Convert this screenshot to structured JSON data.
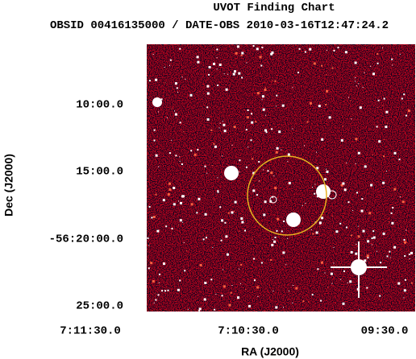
{
  "title": "UVOT Finding Chart",
  "subtitle": "OBSID 00416135000 / DATE-OBS 2010-03-16T12:47:24.2",
  "axes": {
    "x_label": "RA (J2000)",
    "y_label": "Dec (J2000)",
    "x_ticks": [
      "7:11:30.0",
      "7:10:30.0",
      "09:30.0"
    ],
    "y_ticks": [
      "10:00.0",
      "15:00.0",
      "-56:20:00.0",
      "25:00.0"
    ]
  }
}
